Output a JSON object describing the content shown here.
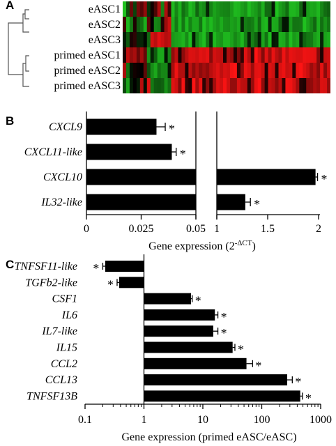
{
  "panels": {
    "a": {
      "letter": "A"
    },
    "b": {
      "letter": "B"
    },
    "c": {
      "letter": "C"
    }
  },
  "colors": {
    "up": "#ff1a1a",
    "down": "#22d722",
    "neutral": "#000000",
    "bar": "#000000"
  },
  "heatmap": {
    "rows": [
      "eASC1",
      "eASC2",
      "eASC3",
      "primed eASC1",
      "primed eASC2",
      "primed eASC3"
    ]
  },
  "chart_data": [
    {
      "type": "bar",
      "orientation": "horizontal",
      "panel": "B",
      "categories": [
        "CXCL9",
        "CXCL11-like",
        "CXCL10",
        "IL32-like"
      ],
      "values": [
        0.032,
        0.039,
        1.97,
        1.28
      ],
      "errors": [
        0.004,
        0.002,
        0.02,
        0.05
      ],
      "significant": [
        "*",
        "*",
        "*",
        "*"
      ],
      "xlabel": "Gene expression (2",
      "xlabel_sup": "-ΔCT",
      "xlabel_close": ")",
      "axis_break": true,
      "xlim_left": [
        0,
        0.05
      ],
      "xlim_right": [
        1,
        2
      ],
      "xticks_left": [
        "0",
        "0.025",
        "0.05"
      ],
      "xticks_right": [
        "1",
        "1.5",
        "2"
      ]
    },
    {
      "type": "bar",
      "orientation": "horizontal",
      "panel": "C",
      "xscale": "log",
      "baseline": 1,
      "categories": [
        "TNFSF11-like",
        "TGFb2-like",
        "CSF1",
        "IL6",
        "IL7-like",
        "IL15",
        "CCL2",
        "CCL13",
        "TNFSF13B"
      ],
      "values": [
        0.22,
        0.38,
        6.3,
        16,
        15,
        32,
        55,
        270,
        450
      ],
      "errors": [
        0.02,
        0.03,
        0.3,
        2,
        3,
        3,
        15,
        60,
        40
      ],
      "significant": [
        "*",
        "*",
        "*",
        "*",
        "*",
        "*",
        "*",
        "*",
        "*"
      ],
      "xlabel": "Gene expression (primed eASC/eASC)",
      "xlim": [
        0.1,
        1000
      ],
      "xticks": [
        "0.1",
        "1",
        "10",
        "100",
        "1000"
      ]
    }
  ]
}
